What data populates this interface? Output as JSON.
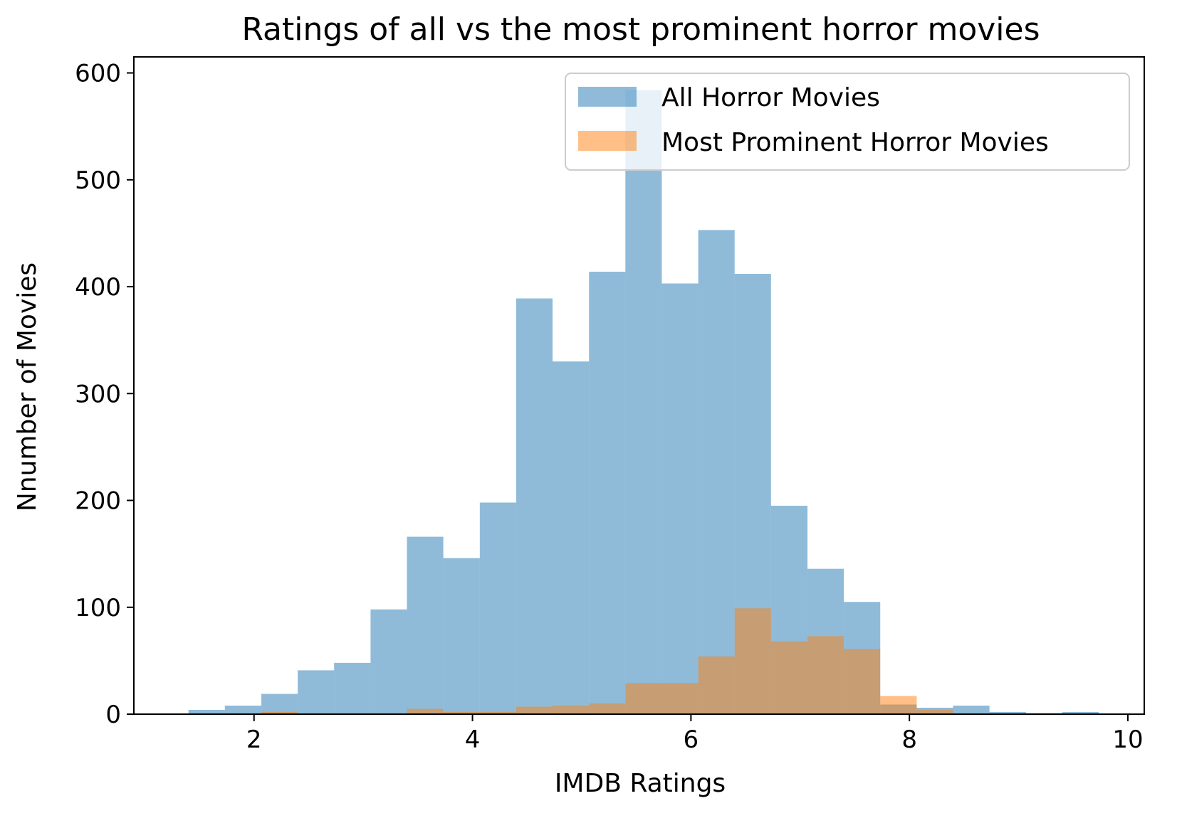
{
  "chart_data": {
    "type": "bar",
    "title": "Ratings of all vs the most prominent horror movies",
    "xlabel": "IMDB Ratings",
    "ylabel": "Nnumber of Movies",
    "xlim": [
      0.9,
      10.15
    ],
    "ylim": [
      0,
      615
    ],
    "xticks": [
      2,
      4,
      6,
      8,
      10
    ],
    "yticks": [
      0,
      100,
      200,
      300,
      400,
      500,
      600
    ],
    "grid": false,
    "legend_position": "top-right",
    "bin_edges": [
      1.4,
      1.733,
      2.067,
      2.4,
      2.733,
      3.067,
      3.4,
      3.733,
      4.067,
      4.4,
      4.733,
      5.067,
      5.4,
      5.733,
      6.067,
      6.4,
      6.733,
      7.067,
      7.4,
      7.733,
      8.067,
      8.4,
      8.733,
      9.067,
      9.4,
      9.733
    ],
    "series": [
      {
        "name": "All Horror Movies",
        "color": "#1f77b4",
        "opacity": 0.5,
        "values": [
          4,
          8,
          19,
          41,
          48,
          98,
          166,
          146,
          198,
          389,
          330,
          414,
          584,
          403,
          453,
          412,
          195,
          136,
          105,
          9,
          6,
          8,
          2,
          1,
          2
        ]
      }
    ],
    "series_overlay": [
      {
        "name": "Most Prominent Horror Movies",
        "color": "#ff7f0e",
        "opacity": 0.5,
        "bin_edges": [
          2.067,
          2.4,
          2.733,
          3.067,
          3.4,
          3.733,
          4.067,
          4.4,
          4.733,
          5.067,
          5.4,
          5.733,
          6.067,
          6.4,
          6.733,
          7.067,
          7.4,
          7.733,
          8.067,
          8.4
        ],
        "values": [
          2,
          0,
          0,
          0,
          5,
          2,
          2,
          7,
          8,
          10,
          29,
          29,
          54,
          99,
          68,
          73,
          61,
          17,
          4
        ]
      }
    ]
  }
}
